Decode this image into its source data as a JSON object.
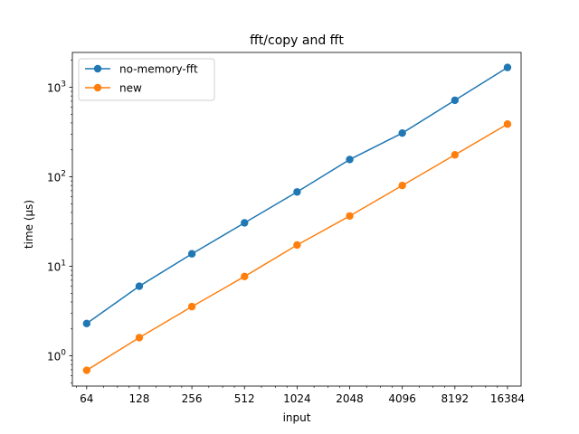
{
  "chart_data": {
    "type": "line",
    "title": "fft/copy and fft",
    "xlabel": "input",
    "ylabel": "time (µs)",
    "x_scale": "log2",
    "y_scale": "log10",
    "x": [
      64,
      128,
      256,
      512,
      1024,
      2048,
      4096,
      8192,
      16384
    ],
    "x_tick_labels": [
      "64",
      "128",
      "256",
      "512",
      "1024",
      "2048",
      "4096",
      "8192",
      "16384"
    ],
    "y_ticks": [
      {
        "value": 1,
        "base": "10",
        "exp": "0"
      },
      {
        "value": 10,
        "base": "10",
        "exp": "1"
      },
      {
        "value": 100,
        "base": "10",
        "exp": "2"
      },
      {
        "value": 1000,
        "base": "10",
        "exp": "3"
      }
    ],
    "xlim": [
      53,
      19600
    ],
    "ylim": [
      0.46,
      2450
    ],
    "grid": false,
    "legend_position": "upper-left",
    "series": [
      {
        "name": "no-memory-fft",
        "color": "#1f77b4",
        "values": [
          2.3,
          6.0,
          13.8,
          30.6,
          67.8,
          156,
          308,
          716,
          1665
        ]
      },
      {
        "name": "new",
        "color": "#ff7f0e",
        "values": [
          0.69,
          1.6,
          3.55,
          7.7,
          17.3,
          36.5,
          80,
          176,
          388
        ]
      }
    ]
  }
}
